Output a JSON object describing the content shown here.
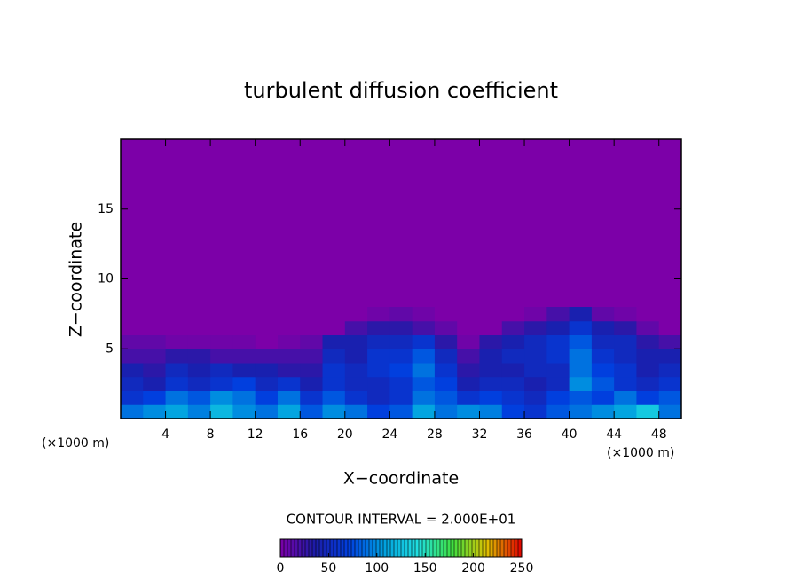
{
  "chart_data": {
    "type": "heatmap",
    "title": "turbulent diffusion coefficient",
    "x_label": "X−coordinate",
    "y_label": "Z−coordinate",
    "x_unit_left": "(×1000 m)",
    "x_unit_right": "(×1000 m)",
    "annotation": "CONTOUR INTERVAL = 2.000E+01",
    "xlim": [
      0,
      50
    ],
    "ylim": [
      0,
      20
    ],
    "xticks": [
      4,
      8,
      12,
      16,
      20,
      24,
      28,
      32,
      36,
      40,
      44,
      48
    ],
    "yticks": [
      5,
      10,
      15
    ],
    "xbins": [
      0,
      2,
      4,
      6,
      8,
      10,
      12,
      14,
      16,
      18,
      20,
      22,
      24,
      26,
      28,
      30,
      32,
      34,
      36,
      38,
      40,
      42,
      44,
      46,
      48,
      50
    ],
    "ybins": [
      0,
      1,
      2,
      3,
      4,
      5,
      6,
      7,
      8
    ],
    "values": [
      [
        90,
        100,
        110,
        95,
        120,
        100,
        90,
        110,
        80,
        100,
        90,
        70,
        80,
        110,
        90,
        100,
        95,
        70,
        60,
        80,
        90,
        100,
        110,
        130,
        90
      ],
      [
        60,
        70,
        90,
        80,
        100,
        90,
        70,
        90,
        60,
        80,
        60,
        50,
        60,
        90,
        80,
        60,
        70,
        60,
        50,
        70,
        80,
        70,
        90,
        70,
        80
      ],
      [
        50,
        40,
        60,
        50,
        60,
        70,
        50,
        60,
        40,
        60,
        50,
        50,
        60,
        80,
        70,
        40,
        50,
        50,
        40,
        50,
        100,
        80,
        60,
        50,
        60
      ],
      [
        40,
        30,
        50,
        40,
        50,
        40,
        40,
        30,
        30,
        60,
        50,
        60,
        70,
        90,
        60,
        30,
        40,
        40,
        50,
        50,
        90,
        70,
        60,
        40,
        50
      ],
      [
        20,
        20,
        30,
        30,
        20,
        20,
        20,
        20,
        20,
        50,
        40,
        60,
        60,
        80,
        50,
        20,
        40,
        50,
        50,
        60,
        90,
        60,
        50,
        40,
        40
      ],
      [
        10,
        10,
        5,
        5,
        5,
        5,
        0,
        5,
        10,
        40,
        40,
        50,
        50,
        60,
        30,
        5,
        30,
        40,
        50,
        60,
        80,
        50,
        50,
        30,
        20
      ],
      [
        0,
        0,
        0,
        0,
        0,
        0,
        0,
        0,
        0,
        0,
        20,
        30,
        30,
        20,
        10,
        0,
        0,
        20,
        30,
        40,
        60,
        40,
        30,
        10,
        0
      ],
      [
        0,
        0,
        0,
        0,
        0,
        0,
        0,
        0,
        0,
        0,
        0,
        5,
        10,
        5,
        0,
        0,
        0,
        0,
        5,
        20,
        40,
        10,
        5,
        0,
        0
      ]
    ],
    "colorlim": [
      0,
      250
    ],
    "colorbar_ticks": [
      0,
      50,
      100,
      150,
      200,
      250
    ],
    "colormap": [
      "#7c00a8",
      "#1c1ca8",
      "#0040e0",
      "#00a0e0",
      "#20e0e0",
      "#40e040",
      "#e0c000",
      "#e00000"
    ]
  }
}
